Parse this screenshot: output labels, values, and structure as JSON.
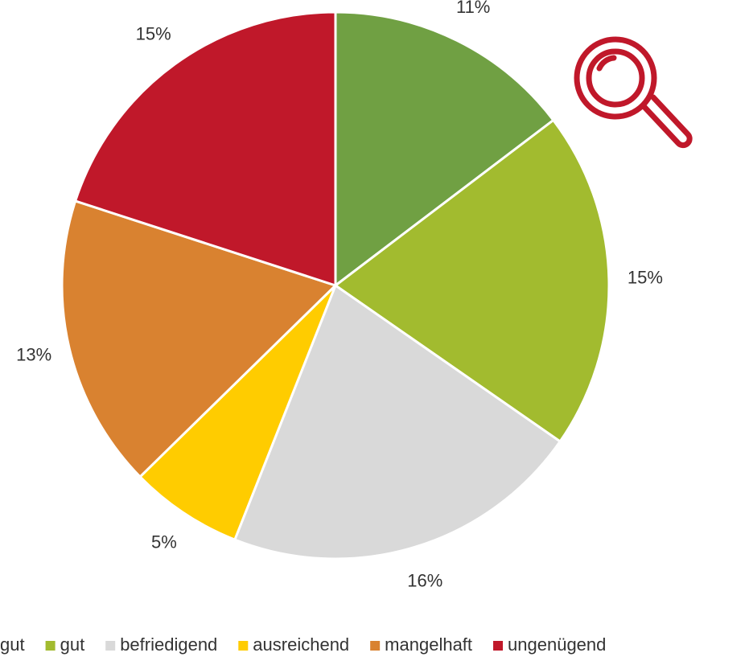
{
  "chart_data": {
    "type": "pie",
    "categories": [
      "gut",
      "gut",
      "befriedigend",
      "ausreichend",
      "mangelhaft",
      "ungenügend"
    ],
    "values": [
      11,
      15,
      16,
      5,
      13,
      15
    ],
    "value_labels": [
      "11%",
      "15%",
      "16%",
      "5%",
      "13%",
      "15%"
    ],
    "colors": [
      "#70a043",
      "#a2bb2f",
      "#d9d9d9",
      "#ffcc00",
      "#d98230",
      "#c0182a"
    ],
    "legend": "bottom"
  }
}
